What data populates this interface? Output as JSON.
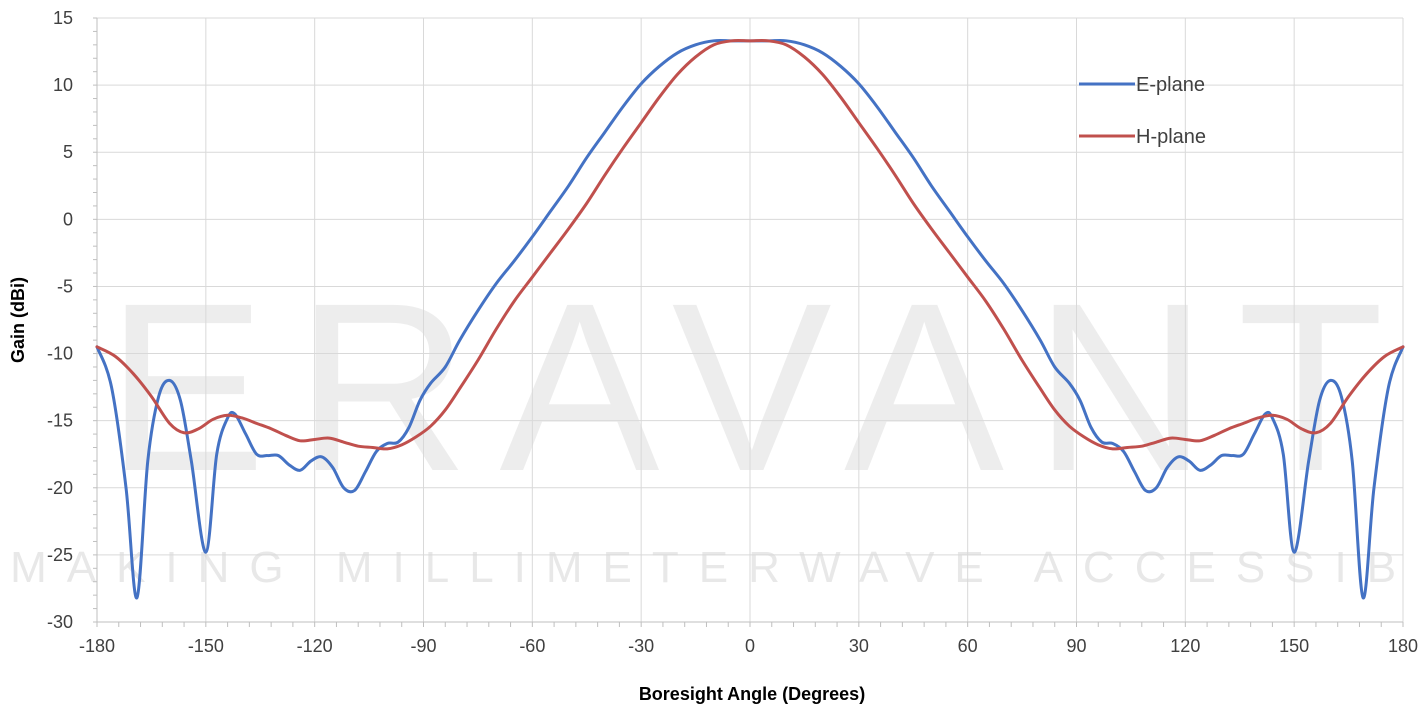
{
  "watermark": {
    "brand": "ERAVANT",
    "tagline": "MAKING MILLIMETERWAVE ACCESSIBLE"
  },
  "chart_data": {
    "type": "line",
    "xlabel": "Boresight Angle (Degrees)",
    "ylabel": "Gain (dBi)",
    "xlim": [
      -180,
      180
    ],
    "ylim": [
      -30,
      15
    ],
    "xticks": [
      -180,
      -150,
      -120,
      -90,
      -60,
      -30,
      0,
      30,
      60,
      90,
      120,
      150,
      180
    ],
    "yticks": [
      15,
      10,
      5,
      0,
      -5,
      -10,
      -15,
      -20,
      -25,
      -30
    ],
    "grid": true,
    "legend_position": "top-right",
    "series": [
      {
        "name": "E-plane",
        "color": "#4472c4",
        "x": [
          -180,
          -176,
          -172,
          -169,
          -166,
          -163,
          -160,
          -157,
          -154,
          -150,
          -147,
          -144,
          -142,
          -139,
          -136,
          -133,
          -130,
          -127,
          -124,
          -121,
          -118,
          -115,
          -112,
          -109,
          -106,
          -103,
          -100,
          -97,
          -94,
          -91,
          -88,
          -84,
          -80,
          -75,
          -70,
          -65,
          -60,
          -55,
          -50,
          -45,
          -40,
          -35,
          -30,
          -25,
          -20,
          -15,
          -10,
          -5,
          0,
          5,
          10,
          15,
          20,
          25,
          30,
          35,
          40,
          45,
          50,
          55,
          60,
          65,
          70,
          75,
          80,
          84,
          88,
          91,
          94,
          97,
          100,
          103,
          106,
          109,
          112,
          115,
          118,
          121,
          124,
          127,
          130,
          133,
          136,
          139,
          142,
          144,
          147,
          150,
          154,
          157,
          160,
          163,
          166,
          169,
          172,
          176,
          180
        ],
        "y": [
          -9.5,
          -12.5,
          -20,
          -28.2,
          -18,
          -13.2,
          -12,
          -13.5,
          -18,
          -24.8,
          -17.5,
          -14.8,
          -14.5,
          -16,
          -17.5,
          -17.6,
          -17.6,
          -18.3,
          -18.7,
          -18,
          -17.7,
          -18.5,
          -20,
          -20.2,
          -18.8,
          -17.3,
          -16.7,
          -16.6,
          -15.5,
          -13.5,
          -12.2,
          -11,
          -9,
          -6.8,
          -4.8,
          -3.1,
          -1.3,
          0.6,
          2.5,
          4.6,
          6.5,
          8.4,
          10.1,
          11.4,
          12.4,
          13,
          13.3,
          13.3,
          13.3,
          13.3,
          13.3,
          13,
          12.4,
          11.4,
          10.1,
          8.4,
          6.5,
          4.6,
          2.5,
          0.6,
          -1.3,
          -3.1,
          -4.8,
          -6.8,
          -9,
          -11,
          -12.2,
          -13.5,
          -15.5,
          -16.6,
          -16.7,
          -17.3,
          -18.8,
          -20.2,
          -20,
          -18.5,
          -17.7,
          -18,
          -18.7,
          -18.3,
          -17.6,
          -17.6,
          -17.5,
          -16,
          -14.5,
          -14.8,
          -17.5,
          -24.8,
          -18,
          -13.5,
          -12,
          -13.2,
          -18,
          -28.2,
          -20,
          -12.5,
          -9.5
        ]
      },
      {
        "name": "H-plane",
        "color": "#c0504d",
        "x": [
          -180,
          -175,
          -170,
          -165,
          -160,
          -156,
          -152,
          -148,
          -144,
          -140,
          -136,
          -132,
          -128,
          -124,
          -120,
          -116,
          -112,
          -108,
          -104,
          -100,
          -96,
          -92,
          -88,
          -84,
          -80,
          -75,
          -70,
          -65,
          -60,
          -55,
          -50,
          -45,
          -40,
          -35,
          -30,
          -25,
          -20,
          -15,
          -10,
          -5,
          0,
          5,
          10,
          15,
          20,
          25,
          30,
          35,
          40,
          45,
          50,
          55,
          60,
          65,
          70,
          75,
          80,
          84,
          88,
          92,
          96,
          100,
          104,
          108,
          112,
          116,
          120,
          124,
          128,
          132,
          136,
          140,
          144,
          148,
          152,
          156,
          160,
          165,
          170,
          175,
          180
        ],
        "y": [
          -9.5,
          -10.2,
          -11.5,
          -13.2,
          -15.2,
          -15.9,
          -15.6,
          -14.9,
          -14.6,
          -14.8,
          -15.2,
          -15.6,
          -16.1,
          -16.5,
          -16.4,
          -16.3,
          -16.6,
          -16.9,
          -17,
          -17.1,
          -16.8,
          -16.2,
          -15.4,
          -14.2,
          -12.6,
          -10.5,
          -8.2,
          -6.1,
          -4.3,
          -2.5,
          -0.7,
          1.2,
          3.3,
          5.3,
          7.2,
          9.1,
          10.8,
          12.1,
          13,
          13.3,
          13.3,
          13.3,
          13,
          12.1,
          10.8,
          9.1,
          7.2,
          5.3,
          3.3,
          1.2,
          -0.7,
          -2.5,
          -4.3,
          -6.1,
          -8.2,
          -10.5,
          -12.6,
          -14.2,
          -15.4,
          -16.2,
          -16.8,
          -17.1,
          -17,
          -16.9,
          -16.6,
          -16.3,
          -16.4,
          -16.5,
          -16.1,
          -15.6,
          -15.2,
          -14.8,
          -14.6,
          -14.9,
          -15.6,
          -15.9,
          -15.2,
          -13.2,
          -11.5,
          -10.2,
          -9.5
        ]
      }
    ]
  }
}
